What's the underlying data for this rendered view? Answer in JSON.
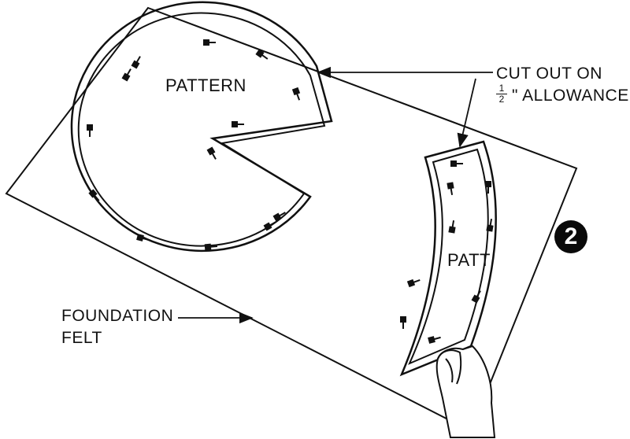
{
  "labels": {
    "pattern_round": "PATTERN",
    "pattern_curved": "PATT",
    "cut_out_line1": "CUT OUT ON",
    "cut_out_fraction_num": "1",
    "cut_out_fraction_den": "2",
    "cut_out_line2": "\" ALLOWANCE",
    "foundation_line1": "FOUNDATION",
    "foundation_line2": "FELT"
  },
  "step_badge": "2"
}
